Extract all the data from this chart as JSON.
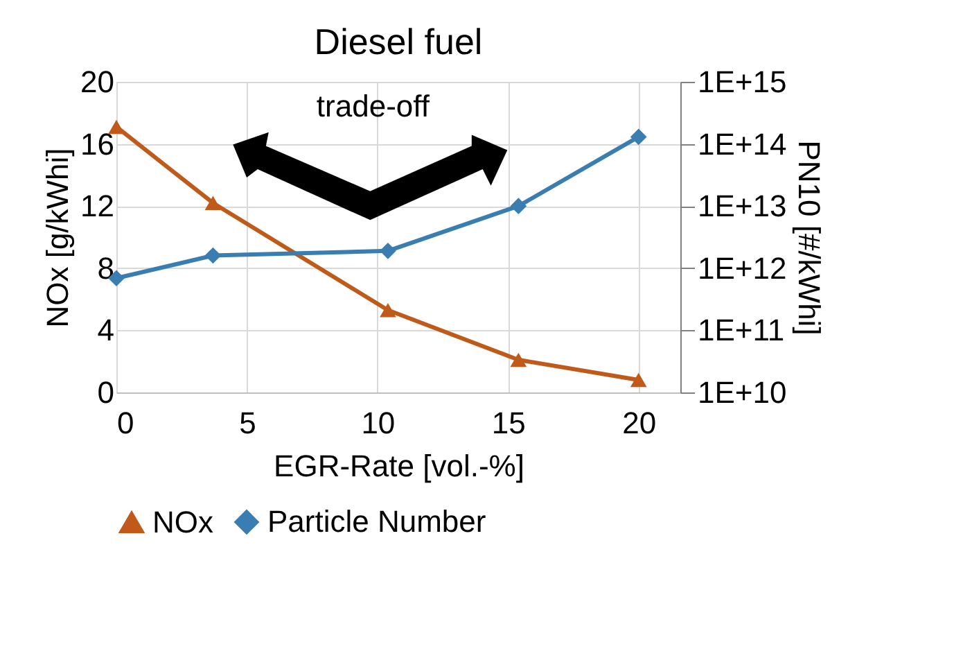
{
  "chart_data": {
    "type": "line",
    "title": "Diesel fuel",
    "xlabel": "EGR-Rate [vol.-%]",
    "ylabel": "NOx [g/kWhi]",
    "y2label": "PN10 [#/kWhi]",
    "annotations": [
      "trade-off"
    ],
    "xlim": [
      0,
      21.6
    ],
    "xticks": [
      0,
      5,
      10,
      15,
      20
    ],
    "ylim": [
      0,
      20
    ],
    "yticks": [
      0,
      4,
      8,
      12,
      16,
      20
    ],
    "y2lim": [
      10000000000.0,
      1000000000000000.0
    ],
    "y2ticks": [
      {
        "value": 10000000000.0,
        "label": "1E+10"
      },
      {
        "value": 100000000000.0,
        "label": "1E+11"
      },
      {
        "value": 1000000000000.0,
        "label": "1E+12"
      },
      {
        "value": 10000000000000.0,
        "label": "1E+13"
      },
      {
        "value": 100000000000000.0,
        "label": "1E+14"
      },
      {
        "value": 1000000000000000.0,
        "label": "1E+15"
      }
    ],
    "log": "y2",
    "grid": true,
    "legend": "bottom",
    "line_style": "solid",
    "series": [
      {
        "name": "NOx",
        "color": "#c05a1a",
        "marker": "triangle",
        "x": [
          0,
          3.7,
          10.4,
          15.4,
          20
        ],
        "values": [
          17.1,
          12.2,
          5.3,
          2.1,
          0.8
        ]
      },
      {
        "name": "Particle Number",
        "color": "#3a7db0",
        "marker": "diamond",
        "axis": "y2",
        "x": [
          0,
          3.7,
          10.4,
          15.4,
          20
        ],
        "values": [
          690000000000.0,
          1600000000000.0,
          1900000000000.0,
          10000000000000.0,
          130000000000000.0
        ]
      }
    ]
  }
}
